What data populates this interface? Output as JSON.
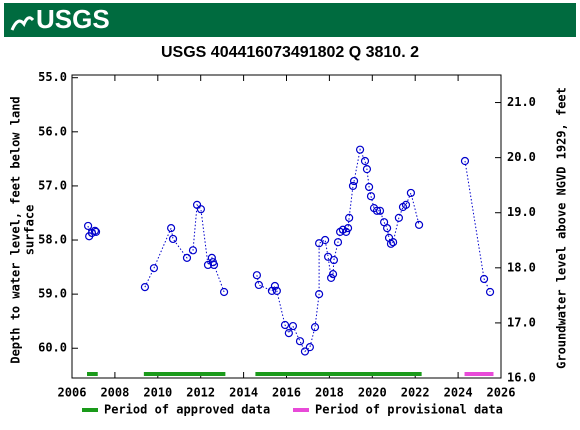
{
  "header": {
    "logo": "USGS"
  },
  "chart_data": {
    "type": "scatter-line",
    "title": "USGS 404416073491802 Q  3810. 2",
    "ylabel": [
      "Depth to water level, feet below land",
      "surface"
    ],
    "y2label": "Groundwater level above NGVD 1929, feet",
    "xlim": [
      2006,
      2026
    ],
    "xticks": [
      2006,
      2008,
      2010,
      2012,
      2014,
      2016,
      2018,
      2020,
      2022,
      2024,
      2026
    ],
    "ylim": [
      54.95,
      60.55
    ],
    "y_inverted": true,
    "yticks": [
      {
        "value": 55,
        "label": "55.0"
      },
      {
        "value": 56,
        "label": "56.0"
      },
      {
        "value": 57,
        "label": "57.0"
      },
      {
        "value": 58,
        "label": "58.0"
      },
      {
        "value": 59,
        "label": "59.0"
      },
      {
        "value": 60,
        "label": "60.0"
      }
    ],
    "y2lim": [
      16.0,
      21.5
    ],
    "y2ticks": [
      {
        "value": 16,
        "label": "16.0"
      },
      {
        "value": 17,
        "label": "17.0"
      },
      {
        "value": 18,
        "label": "18.0"
      },
      {
        "value": 19,
        "label": "19.0"
      },
      {
        "value": 20,
        "label": "20.0"
      },
      {
        "value": 21,
        "label": "21.0"
      }
    ],
    "series": [
      {
        "color": "#0000cc",
        "x": [
          2006.75,
          2006.8,
          2006.93,
          2007.07,
          2007.12,
          null,
          2009.4,
          2009.82,
          2010.62,
          2010.71,
          2011.36,
          2011.64,
          2011.83,
          2012.01,
          2012.34,
          2012.52,
          2012.57,
          2012.62,
          2013.09,
          null,
          2014.62,
          2014.71,
          2015.32,
          2015.46,
          2015.55,
          2015.93,
          2016.11,
          2016.3,
          2016.63,
          2016.86,
          2017.09,
          2017.33,
          2017.52,
          2017.52,
          2017.8,
          2017.94,
          2018.08,
          2018.17,
          2018.21,
          2018.4,
          2018.5,
          2018.63,
          2018.78,
          2018.87,
          2018.92,
          2019.1,
          2019.15,
          2019.43,
          2019.66,
          2019.75,
          2019.85,
          2019.94,
          2020.08,
          2020.22,
          2020.36,
          2020.55,
          2020.69,
          2020.78,
          2020.87,
          2020.97,
          2021.24,
          2021.43,
          2021.57,
          2021.8,
          2022.18,
          null,
          2024.32,
          2025.21,
          2025.49
        ],
        "values": [
          57.74,
          57.93,
          57.87,
          57.83,
          57.85,
          null,
          58.87,
          58.52,
          57.78,
          57.98,
          58.33,
          58.19,
          57.35,
          57.43,
          58.46,
          58.33,
          58.41,
          58.46,
          58.96,
          null,
          58.65,
          58.83,
          58.94,
          58.85,
          58.94,
          59.57,
          59.72,
          59.59,
          59.87,
          60.06,
          59.98,
          59.61,
          59.0,
          58.06,
          58.0,
          58.31,
          58.7,
          58.63,
          58.37,
          58.04,
          57.85,
          57.81,
          57.85,
          57.78,
          57.59,
          57.0,
          56.91,
          56.33,
          56.54,
          56.69,
          57.02,
          57.19,
          57.41,
          57.46,
          57.46,
          57.67,
          57.78,
          57.96,
          58.07,
          58.04,
          57.59,
          57.39,
          57.35,
          57.13,
          57.72,
          null,
          56.54,
          58.72,
          58.96
        ]
      }
    ],
    "periods": [
      {
        "name": "Period of approved data",
        "color": "#1a9a1a",
        "ranges": [
          [
            2006.7,
            2007.2
          ],
          [
            2009.35,
            2013.15
          ],
          [
            2014.55,
            2022.3
          ]
        ]
      },
      {
        "name": "Period of provisional data",
        "color": "#e84ad8",
        "ranges": [
          [
            2024.3,
            2025.65
          ]
        ]
      }
    ]
  }
}
